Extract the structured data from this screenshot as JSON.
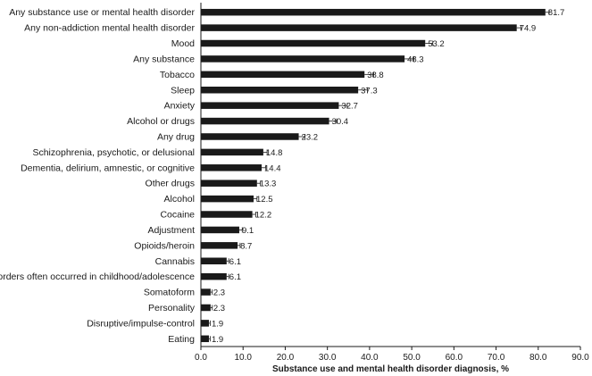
{
  "chart_data": {
    "type": "bar",
    "orientation": "horizontal",
    "title": "",
    "xlabel": "Substance use and mental health disorder diagnosis, %",
    "ylabel": "",
    "xlim": [
      0,
      90
    ],
    "xticks": [
      "0.0",
      "10.0",
      "20.0",
      "30.0",
      "40.0",
      "50.0",
      "60.0",
      "70.0",
      "80.0",
      "90.0"
    ],
    "grid": false,
    "legend": "none",
    "bar_color": "#1a1a1a",
    "categories": [
      "Any substance use or mental health disorder",
      "Any non-addiction mental health disorder",
      "Mood",
      "Any substance",
      "Tobacco",
      "Sleep",
      "Anxiety",
      "Alcohol or drugs",
      "Any drug",
      "Schizophrenia, psychotic, or delusional",
      "Dementia, delirium, amnestic, or cognitive",
      "Other drugs",
      "Alcohol",
      "Cocaine",
      "Adjustment",
      "Opioids/heroin",
      "Cannabis",
      "Disorders often occurred in childhood/adolescence",
      "Somatoform",
      "Personality",
      "Disruptive/impulse-control",
      "Eating"
    ],
    "values": [
      81.7,
      74.9,
      53.2,
      48.3,
      38.8,
      37.3,
      32.7,
      30.4,
      23.2,
      14.8,
      14.4,
      13.3,
      12.5,
      12.2,
      9.1,
      8.7,
      6.1,
      6.1,
      2.3,
      2.3,
      1.9,
      1.9
    ],
    "value_labels": [
      "81.7",
      "74.9",
      "53.2",
      "48.3",
      "38.8",
      "37.3",
      "32.7",
      "30.4",
      "23.2",
      "14.8",
      "14.4",
      "13.3",
      "12.5",
      "12.2",
      "9.1",
      "8.7",
      "6.1",
      "6.1",
      "2.3",
      "2.3",
      "1.9",
      "1.9"
    ],
    "error_upper": [
      82.6,
      75.9,
      55.0,
      50.5,
      41.0,
      39.5,
      34.7,
      32.2,
      24.7,
      15.7,
      15.4,
      14.1,
      13.3,
      13.0,
      9.8,
      9.3,
      6.6,
      6.6,
      2.7,
      2.7,
      2.2,
      2.2
    ]
  }
}
